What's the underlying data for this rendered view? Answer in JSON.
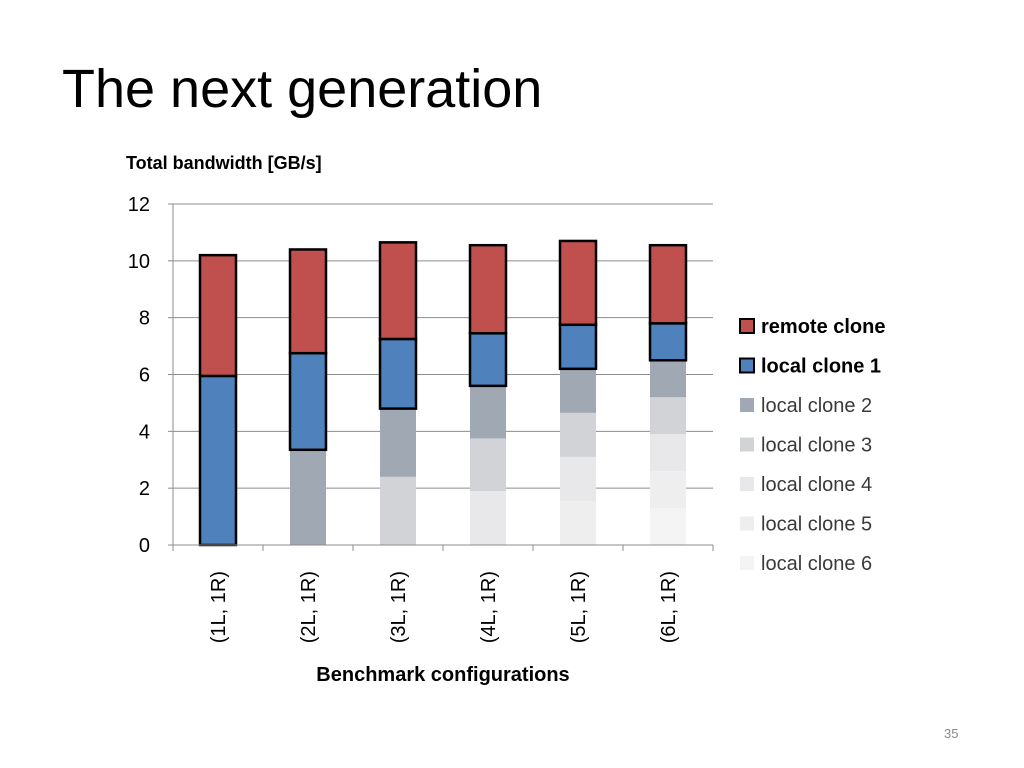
{
  "slide": {
    "title": "The next generation",
    "page_number": "35"
  },
  "chart_data": {
    "type": "bar",
    "stacked": true,
    "title": "Total bandwidth [GB/s]",
    "xlabel": "Benchmark configurations",
    "ylabel": "",
    "ylim": [
      0,
      12
    ],
    "yticks": [
      0,
      2,
      4,
      6,
      8,
      10,
      12
    ],
    "grid": true,
    "legend_position": "right",
    "categories": [
      "(1L, 1R)",
      "(2L, 1R)",
      "(3L, 1R)",
      "(4L, 1R)",
      "(5L, 1R)",
      "(6L, 1R)"
    ],
    "series": [
      {
        "name": "local clone 6",
        "color": "#f4f4f4",
        "outlined": false,
        "bold": false,
        "values": [
          0,
          0,
          0,
          0,
          0,
          1.3
        ]
      },
      {
        "name": "local clone 5",
        "color": "#eeeeee",
        "outlined": false,
        "bold": false,
        "values": [
          0,
          0,
          0,
          0,
          1.55,
          1.3
        ]
      },
      {
        "name": "local clone 4",
        "color": "#e8e8ea",
        "outlined": false,
        "bold": false,
        "values": [
          0,
          0,
          0,
          1.9,
          1.55,
          1.3
        ]
      },
      {
        "name": "local clone 3",
        "color": "#d2d3d6",
        "outlined": false,
        "bold": false,
        "values": [
          0,
          0,
          2.4,
          1.85,
          1.55,
          1.3
        ]
      },
      {
        "name": "local clone 2",
        "color": "#a0a8b4",
        "outlined": false,
        "bold": false,
        "values": [
          0,
          3.35,
          2.4,
          1.85,
          1.55,
          1.3
        ]
      },
      {
        "name": "local clone 1",
        "color": "#4f81bd",
        "outlined": true,
        "bold": true,
        "values": [
          5.95,
          3.4,
          2.45,
          1.85,
          1.55,
          1.3
        ]
      },
      {
        "name": "remote clone",
        "color": "#c0504d",
        "outlined": true,
        "bold": true,
        "values": [
          4.25,
          3.65,
          3.4,
          3.1,
          2.95,
          2.75
        ]
      }
    ]
  }
}
